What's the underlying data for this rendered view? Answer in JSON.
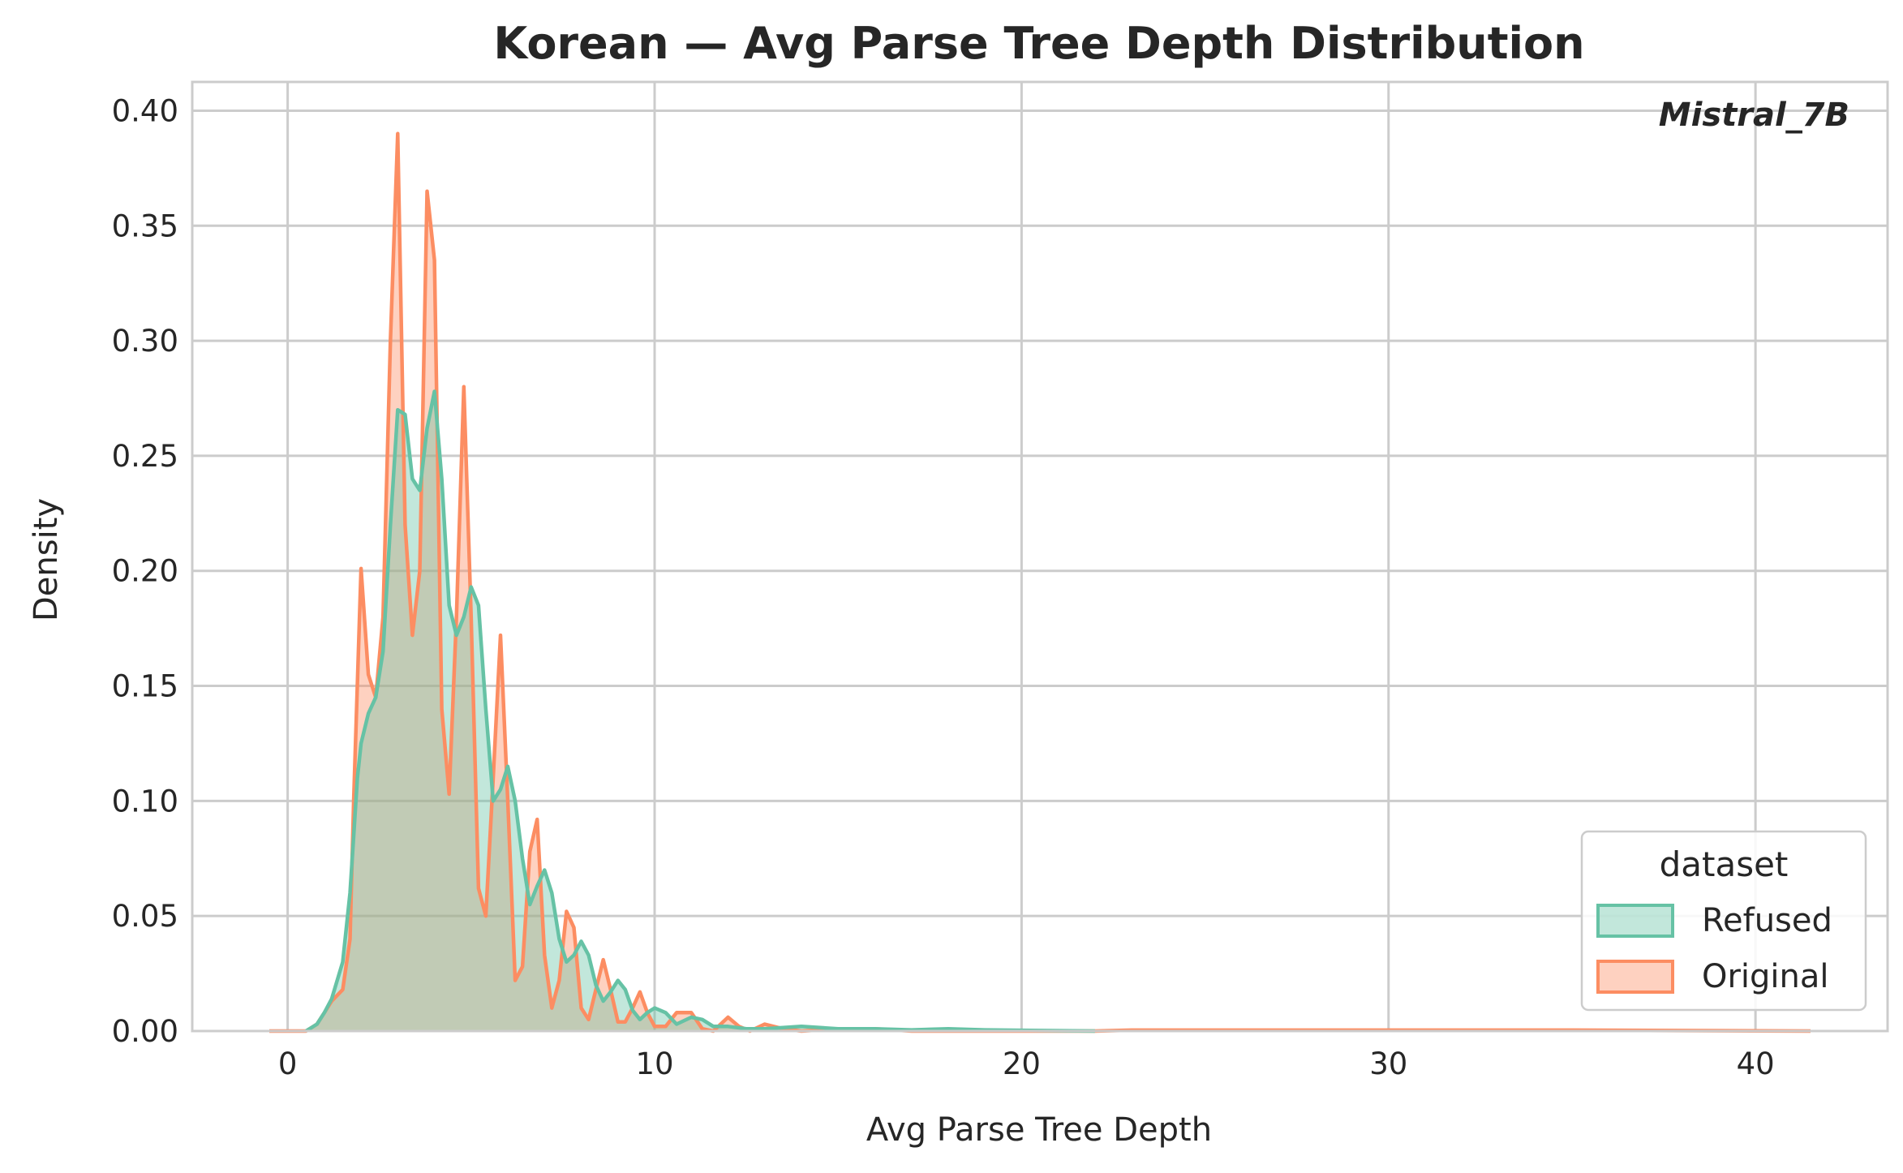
{
  "chart_data": {
    "type": "area",
    "title": "Korean — Avg Parse Tree Depth Distribution",
    "xlabel": "Avg Parse Tree Depth",
    "ylabel": "Density",
    "annotation": "Mistral_7B",
    "xlim": [
      -2.6,
      43.6
    ],
    "ylim": [
      0,
      0.4125
    ],
    "x_ticks": [
      0,
      10,
      20,
      30,
      40
    ],
    "x_tick_labels": [
      "0",
      "10",
      "20",
      "30",
      "40"
    ],
    "y_ticks": [
      0.0,
      0.05,
      0.1,
      0.15,
      0.2,
      0.25,
      0.3,
      0.35,
      0.4
    ],
    "y_tick_labels": [
      "0.00",
      "0.05",
      "0.10",
      "0.15",
      "0.20",
      "0.25",
      "0.30",
      "0.35",
      "0.40"
    ],
    "grid": true,
    "legend": {
      "title": "dataset",
      "position": "bottom-right"
    },
    "series": [
      {
        "name": "Refused",
        "color": "#66c2a5",
        "x": [
          0.5,
          0.8,
          1.0,
          1.2,
          1.5,
          1.7,
          1.9,
          2.0,
          2.2,
          2.4,
          2.6,
          2.8,
          3.0,
          3.2,
          3.4,
          3.6,
          3.8,
          4.0,
          4.2,
          4.4,
          4.6,
          4.8,
          5.0,
          5.2,
          5.4,
          5.6,
          5.8,
          6.0,
          6.2,
          6.4,
          6.6,
          6.8,
          7.0,
          7.2,
          7.4,
          7.6,
          7.8,
          8.0,
          8.2,
          8.4,
          8.6,
          8.8,
          9.0,
          9.2,
          9.4,
          9.6,
          9.8,
          10.0,
          10.3,
          10.6,
          11.0,
          11.3,
          11.6,
          12.0,
          12.5,
          13.0,
          14.0,
          15.0,
          16.0,
          17.0,
          18.0,
          19.0,
          20.0,
          22.0
        ],
        "y": [
          0.0,
          0.003,
          0.008,
          0.014,
          0.03,
          0.06,
          0.11,
          0.125,
          0.138,
          0.145,
          0.165,
          0.22,
          0.27,
          0.268,
          0.24,
          0.235,
          0.262,
          0.278,
          0.24,
          0.185,
          0.172,
          0.18,
          0.193,
          0.185,
          0.14,
          0.1,
          0.105,
          0.115,
          0.1,
          0.075,
          0.055,
          0.063,
          0.07,
          0.06,
          0.04,
          0.03,
          0.033,
          0.039,
          0.033,
          0.02,
          0.013,
          0.017,
          0.022,
          0.018,
          0.009,
          0.005,
          0.008,
          0.01,
          0.008,
          0.003,
          0.006,
          0.005,
          0.002,
          0.002,
          0.001,
          0.001,
          0.002,
          0.001,
          0.001,
          0.0005,
          0.001,
          0.0005,
          0.0003,
          0.0
        ]
      },
      {
        "name": "Original",
        "color": "#fc8d62",
        "x": [
          -0.5,
          0.5,
          0.8,
          1.0,
          1.2,
          1.5,
          1.7,
          1.8,
          2.0,
          2.2,
          2.4,
          2.6,
          2.8,
          3.0,
          3.2,
          3.4,
          3.6,
          3.8,
          4.0,
          4.2,
          4.4,
          4.6,
          4.8,
          5.0,
          5.2,
          5.4,
          5.6,
          5.8,
          6.0,
          6.2,
          6.4,
          6.6,
          6.8,
          7.0,
          7.2,
          7.4,
          7.6,
          7.8,
          8.0,
          8.2,
          8.4,
          8.6,
          8.8,
          9.0,
          9.2,
          9.4,
          9.6,
          9.8,
          10.0,
          10.3,
          10.6,
          11.0,
          11.3,
          11.6,
          12.0,
          12.3,
          12.6,
          13.0,
          13.5,
          14.0,
          15.0,
          16.0,
          17.0,
          18.0,
          20.0,
          22.0,
          23.0,
          30.0,
          35.0,
          41.5
        ],
        "y": [
          0.0,
          0.0,
          0.003,
          0.008,
          0.013,
          0.018,
          0.04,
          0.1,
          0.201,
          0.155,
          0.145,
          0.18,
          0.3,
          0.39,
          0.22,
          0.172,
          0.2,
          0.365,
          0.335,
          0.14,
          0.103,
          0.18,
          0.28,
          0.18,
          0.062,
          0.05,
          0.11,
          0.172,
          0.1,
          0.022,
          0.028,
          0.078,
          0.092,
          0.033,
          0.01,
          0.022,
          0.052,
          0.045,
          0.01,
          0.005,
          0.018,
          0.031,
          0.018,
          0.004,
          0.004,
          0.01,
          0.017,
          0.008,
          0.002,
          0.002,
          0.008,
          0.008,
          0.001,
          0.0,
          0.006,
          0.002,
          0.0,
          0.003,
          0.001,
          0.0,
          0.001,
          0.001,
          0.0,
          0.0,
          0.0,
          0.0,
          0.0004,
          0.0004,
          0.0004,
          0.0
        ]
      }
    ]
  }
}
